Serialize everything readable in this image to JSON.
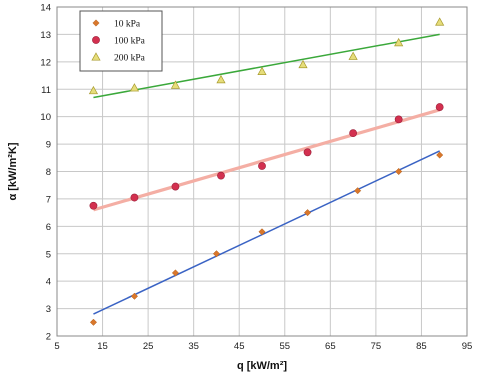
{
  "chart_data": {
    "type": "scatter",
    "xlabel": "q [kW/m²]",
    "ylabel": "α [kW/m²K]",
    "xlim": [
      5,
      95
    ],
    "ylim": [
      2,
      14
    ],
    "x_ticks": [
      "5",
      "15",
      "25",
      "35",
      "45",
      "55",
      "65",
      "75",
      "85",
      "95"
    ],
    "y_ticks": [
      "2",
      "3",
      "4",
      "5",
      "6",
      "7",
      "8",
      "9",
      "10",
      "11",
      "12",
      "13",
      "14"
    ],
    "grid": true,
    "legend_position": "top-left",
    "series": [
      {
        "name": "10 kPa",
        "marker": "diamond",
        "color": "#d9772b",
        "points": [
          [
            13,
            2.5
          ],
          [
            22,
            3.45
          ],
          [
            31,
            4.3
          ],
          [
            40,
            5.0
          ],
          [
            50,
            5.8
          ],
          [
            60,
            6.5
          ],
          [
            71,
            7.3
          ],
          [
            80,
            8.0
          ],
          [
            89,
            8.6
          ]
        ],
        "fit": {
          "color": "#3a63c4",
          "from": [
            13,
            2.8
          ],
          "to": [
            89,
            8.75
          ]
        }
      },
      {
        "name": "100 kPa",
        "marker": "circle",
        "color": "#d3304f",
        "points": [
          [
            13,
            6.75
          ],
          [
            22,
            7.05
          ],
          [
            31,
            7.45
          ],
          [
            41,
            7.85
          ],
          [
            50,
            8.2
          ],
          [
            60,
            8.7
          ],
          [
            70,
            9.4
          ],
          [
            80,
            9.9
          ],
          [
            89,
            10.35
          ]
        ],
        "fit": {
          "color": "#f4aea4",
          "from": [
            13,
            6.6
          ],
          "to": [
            89,
            10.25
          ]
        }
      },
      {
        "name": "200 kPa",
        "marker": "triangle",
        "color": "#e6dd7a",
        "points": [
          [
            13,
            10.95
          ],
          [
            22,
            11.05
          ],
          [
            31,
            11.15
          ],
          [
            41,
            11.35
          ],
          [
            50,
            11.65
          ],
          [
            59,
            11.9
          ],
          [
            70,
            12.2
          ],
          [
            80,
            12.7
          ],
          [
            89,
            13.45
          ]
        ],
        "fit": {
          "color": "#3aa83a",
          "from": [
            13,
            10.7
          ],
          "to": [
            89,
            13.0
          ]
        }
      }
    ]
  }
}
